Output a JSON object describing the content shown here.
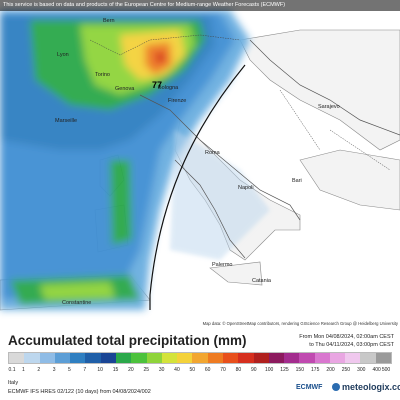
{
  "banner": "This service is based on data and products of the European Centre for Medium-range Weather Forecasts (ECMWF)",
  "attribution": "Map data: © OpenStreetMap contributors, rendering GIScience Research Group @ Heidelberg University",
  "places": [
    {
      "name": "Bern"
    },
    {
      "name": "Lyon"
    },
    {
      "name": "Torino"
    },
    {
      "name": "Genova"
    },
    {
      "name": "Marseille"
    },
    {
      "name": "Bologna"
    },
    {
      "name": "Firenze"
    },
    {
      "name": "Roma"
    },
    {
      "name": "Napoli"
    },
    {
      "name": "Bari"
    },
    {
      "name": "Palermo"
    },
    {
      "name": "Catania"
    },
    {
      "name": "Sarajevo"
    },
    {
      "name": "Constantine"
    }
  ],
  "max_marker": "77",
  "title": "Accumulated total precipitation (mm)",
  "period": {
    "from": "From Mon 04/08/2024, 02:00am CEST",
    "to": "to Thu 04/11/2024, 03:00pm CEST"
  },
  "legend": {
    "ticks": [
      "0.1",
      "1",
      "2",
      "3",
      "5",
      "7",
      "10",
      "15",
      "20",
      "25",
      "30",
      "40",
      "50",
      "60",
      "70",
      "80",
      "90",
      "100",
      "125",
      "150",
      "175",
      "200",
      "250",
      "300",
      "400",
      "500"
    ],
    "colors": [
      "#d9d9d9",
      "#bdd7ee",
      "#8fbce6",
      "#5c9ed6",
      "#2f7fc1",
      "#1f5fa8",
      "#1a4595",
      "#2ba84a",
      "#4cc23c",
      "#8fd43a",
      "#d4e33a",
      "#f4d23a",
      "#f2a630",
      "#ee7b22",
      "#e8501c",
      "#d62f1e",
      "#b0201e",
      "#8c1a5e",
      "#a32c8e",
      "#c04ab0",
      "#d977cf",
      "#e9a6e2",
      "#f0c8ee",
      "#c8c8c8",
      "#9a9a9a"
    ]
  },
  "footer": {
    "region": "Italy",
    "model": "ECMWF IFS HRES 02/122 (10 days) from 04/08/2024/002",
    "ecmwf": "ECMWF",
    "brand": "meteologix.com"
  }
}
